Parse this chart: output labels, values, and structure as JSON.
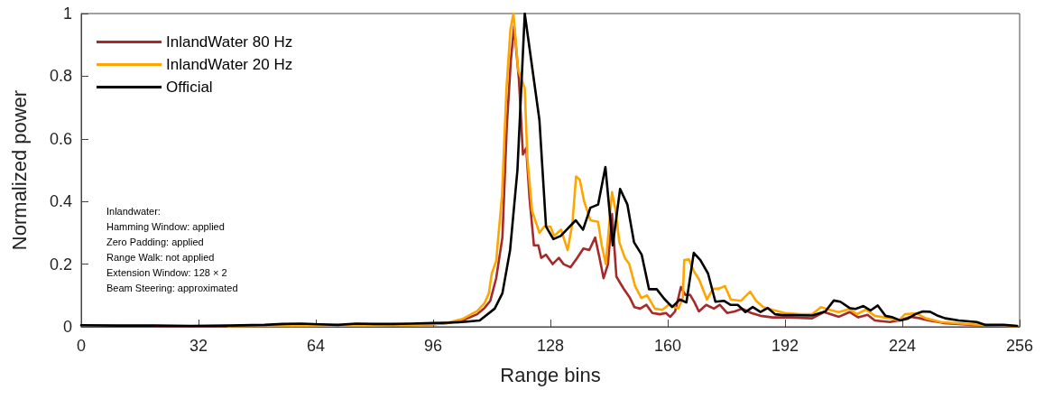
{
  "chart_data": {
    "type": "line",
    "xlabel": "Range bins",
    "ylabel": "Normalized power",
    "xlim": [
      0,
      256
    ],
    "xticks": [
      0,
      32,
      64,
      96,
      128,
      160,
      192,
      224,
      256
    ],
    "ylim": [
      0,
      1
    ],
    "yticks": [
      0,
      0.2,
      0.4,
      0.6,
      0.8,
      1
    ],
    "grid": false,
    "legend": "top left",
    "marker": "none",
    "line_style": "solid",
    "annotations": [
      "Inlandwater:",
      "Hamming Window: applied",
      "Zero Padding: applied",
      "Range Walk: not applied",
      "Extension Window: 128 × 2",
      "Beam Steering: approximated"
    ],
    "series": [
      {
        "name": "InlandWater 80 Hz",
        "color": "#a52a2a",
        "x": [
          20,
          30,
          40,
          50,
          60,
          70,
          80,
          90,
          96,
          100,
          104,
          108,
          110,
          111.6,
          113.2,
          114.9,
          116.1,
          117.2,
          118.1,
          119.4,
          120.5,
          121.4,
          122.3,
          123.5,
          124.7,
          125.5,
          126.8,
          128.6,
          130.3,
          131.6,
          133.5,
          135.3,
          137,
          138.6,
          140.2,
          141.4,
          142.5,
          143.7,
          144.8,
          146,
          148,
          149.7,
          150.9,
          152.5,
          154.2,
          155.8,
          157.9,
          159.5,
          160.7,
          162,
          163.6,
          164.8,
          166.1,
          167.3,
          168.5,
          170.5,
          172.6,
          174.2,
          176.2,
          178.3,
          180.3,
          182.8,
          185.3,
          188.6,
          193.5,
          199.4,
          202.7,
          206.7,
          209.6,
          212,
          214.5,
          216.5,
          220.6,
          223,
          226.3,
          228.8,
          231.2,
          235.3,
          243.5,
          255.3
        ],
        "values": [
          0.002,
          0.002,
          0.002,
          0.003,
          0.003,
          0.004,
          0.004,
          0.006,
          0.008,
          0.012,
          0.02,
          0.04,
          0.06,
          0.083,
          0.155,
          0.285,
          0.64,
          0.85,
          0.96,
          0.79,
          0.55,
          0.57,
          0.41,
          0.26,
          0.26,
          0.22,
          0.23,
          0.2,
          0.22,
          0.2,
          0.19,
          0.22,
          0.25,
          0.245,
          0.285,
          0.22,
          0.155,
          0.2,
          0.36,
          0.16,
          0.121,
          0.092,
          0.063,
          0.058,
          0.07,
          0.044,
          0.04,
          0.044,
          0.032,
          0.049,
          0.127,
          0.102,
          0.102,
          0.078,
          0.049,
          0.07,
          0.058,
          0.07,
          0.044,
          0.049,
          0.058,
          0.044,
          0.035,
          0.03,
          0.03,
          0.027,
          0.047,
          0.032,
          0.047,
          0.03,
          0.038,
          0.02,
          0.015,
          0.02,
          0.032,
          0.027,
          0.02,
          0.012,
          0.006,
          0.002
        ]
      },
      {
        "name": "InlandWater 20 Hz",
        "color": "#ffa500",
        "x": [
          40,
          50,
          60,
          70,
          80,
          90,
          96,
          100,
          104,
          108,
          110,
          111.2,
          112,
          113.2,
          114.8,
          116,
          117.1,
          117.9,
          119.2,
          121,
          121.7,
          123,
          125,
          126.3,
          128,
          129,
          130.9,
          132.7,
          134,
          135,
          136,
          137.2,
          138.9,
          141,
          142,
          143.1,
          144.8,
          145.8,
          146.8,
          148.3,
          149.5,
          151.1,
          152.8,
          154.4,
          156.5,
          158.5,
          160.5,
          161.7,
          162.9,
          164.1,
          164.5,
          165.8,
          167,
          168.6,
          170.7,
          172.3,
          174,
          175.6,
          177.2,
          180,
          182.5,
          184.1,
          186.1,
          188.6,
          191.9,
          196,
          199.4,
          201.8,
          203.9,
          206.7,
          209.6,
          211.6,
          214.1,
          216.5,
          220.6,
          223,
          224.7,
          227.9,
          230.4,
          234.5,
          240.2,
          246.7,
          255.3
        ],
        "values": [
          0.002,
          0.003,
          0.003,
          0.004,
          0.004,
          0.006,
          0.008,
          0.013,
          0.025,
          0.05,
          0.075,
          0.107,
          0.17,
          0.21,
          0.42,
          0.76,
          0.95,
          1,
          0.82,
          0.76,
          0.54,
          0.37,
          0.3,
          0.32,
          0.32,
          0.29,
          0.31,
          0.245,
          0.33,
          0.48,
          0.47,
          0.4,
          0.34,
          0.335,
          0.26,
          0.2,
          0.43,
          0.37,
          0.27,
          0.22,
          0.2,
          0.13,
          0.092,
          0.1,
          0.058,
          0.054,
          0.072,
          0.063,
          0.058,
          0.092,
          0.213,
          0.215,
          0.18,
          0.15,
          0.087,
          0.121,
          0.122,
          0.13,
          0.087,
          0.083,
          0.112,
          0.083,
          0.063,
          0.054,
          0.044,
          0.04,
          0.04,
          0.063,
          0.055,
          0.047,
          0.057,
          0.04,
          0.055,
          0.035,
          0.027,
          0.02,
          0.04,
          0.043,
          0.027,
          0.015,
          0.01,
          0.005,
          0.002
        ]
      },
      {
        "name": "Official",
        "color": "#000000",
        "x": [
          0,
          10,
          20,
          30,
          40,
          50,
          55,
          60,
          65,
          70,
          75,
          80,
          85,
          90,
          96,
          100,
          104,
          108.7,
          112.8,
          114.9,
          117,
          119,
          121,
          123,
          125,
          126.8,
          128.8,
          130.8,
          134.9,
          136.9,
          138.9,
          141,
          143,
          145,
          147,
          149,
          150.8,
          152.9,
          154.9,
          157,
          159,
          161.2,
          163.3,
          165.1,
          167.1,
          168.9,
          171,
          173,
          175.3,
          177.1,
          179.1,
          181.2,
          183.2,
          185.3,
          187.3,
          189.3,
          191.4,
          194.5,
          199.4,
          203,
          205.3,
          207.1,
          209.6,
          211.2,
          213.4,
          215.3,
          217.3,
          219.4,
          221.4,
          223.4,
          225.5,
          227.5,
          229.6,
          231.6,
          233.7,
          235.7,
          239.4,
          244.3,
          246.7,
          251.6,
          255.3
        ],
        "values": [
          0.005,
          0.004,
          0.004,
          0.003,
          0.004,
          0.006,
          0.009,
          0.01,
          0.008,
          0.006,
          0.01,
          0.009,
          0.009,
          0.01,
          0.012,
          0.013,
          0.015,
          0.02,
          0.058,
          0.107,
          0.245,
          0.5,
          1,
          0.83,
          0.66,
          0.32,
          0.28,
          0.29,
          0.34,
          0.31,
          0.38,
          0.39,
          0.51,
          0.26,
          0.44,
          0.39,
          0.27,
          0.23,
          0.12,
          0.12,
          0.09,
          0.063,
          0.087,
          0.078,
          0.236,
          0.213,
          0.17,
          0.08,
          0.083,
          0.07,
          0.07,
          0.047,
          0.063,
          0.047,
          0.06,
          0.04,
          0.037,
          0.037,
          0.036,
          0.049,
          0.084,
          0.08,
          0.06,
          0.057,
          0.066,
          0.052,
          0.068,
          0.035,
          0.03,
          0.02,
          0.026,
          0.04,
          0.049,
          0.048,
          0.035,
          0.027,
          0.02,
          0.015,
          0.006,
          0.006,
          0.003
        ]
      }
    ]
  }
}
